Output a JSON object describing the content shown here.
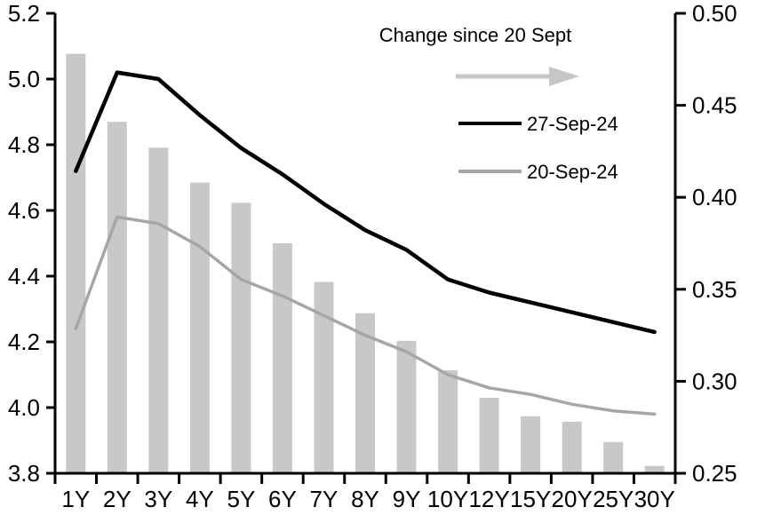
{
  "legend": {
    "title": "Change since 20 Sept",
    "arrow_color": "#c6c6c6",
    "entries": [
      {
        "label": "27-Sep-24"
      },
      {
        "label": "20-Sep-24"
      }
    ]
  },
  "chart_data": {
    "type": "combo",
    "grid": false,
    "legend_position": "inside-top-right",
    "categories": [
      "1Y",
      "2Y",
      "3Y",
      "4Y",
      "5Y",
      "6Y",
      "7Y",
      "8Y",
      "9Y",
      "10Y",
      "12Y",
      "15Y",
      "20Y",
      "25Y",
      "30Y"
    ],
    "series": [
      {
        "name": "Change since 20 Sept",
        "type": "bar",
        "axis": "right",
        "color": "#c8c8c8",
        "values": [
          0.478,
          0.441,
          0.427,
          0.408,
          0.397,
          0.375,
          0.354,
          0.337,
          0.322,
          0.306,
          0.291,
          0.281,
          0.278,
          0.267,
          0.254
        ]
      },
      {
        "name": "27-Sep-24",
        "type": "line",
        "axis": "left",
        "color": "#000000",
        "values": [
          4.72,
          5.02,
          5.0,
          4.89,
          4.79,
          4.71,
          4.62,
          4.54,
          4.48,
          4.39,
          4.35,
          4.32,
          4.29,
          4.26,
          4.23
        ]
      },
      {
        "name": "20-Sep-24",
        "type": "line",
        "axis": "left",
        "color": "#a6a6a6",
        "values": [
          4.24,
          4.58,
          4.56,
          4.49,
          4.39,
          4.34,
          4.28,
          4.22,
          4.17,
          4.1,
          4.06,
          4.04,
          4.01,
          3.99,
          3.98
        ]
      }
    ],
    "left_axis": {
      "min": 3.8,
      "max": 5.2,
      "ticks": [
        5.2,
        5.0,
        4.8,
        4.6,
        4.4,
        4.2,
        4.0,
        3.8
      ],
      "tick_labels": [
        "5.2",
        "5.0",
        "4.8",
        "4.6",
        "4.4",
        "4.2",
        "4.0",
        "3.8"
      ]
    },
    "right_axis": {
      "min": 0.25,
      "max": 0.5,
      "ticks": [
        0.5,
        0.45,
        0.4,
        0.35,
        0.3,
        0.25
      ],
      "tick_labels": [
        "0.50",
        "0.45",
        "0.40",
        "0.35",
        "0.30",
        "0.25"
      ]
    }
  }
}
